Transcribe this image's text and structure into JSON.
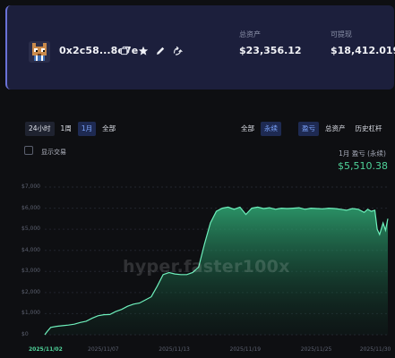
{
  "account": {
    "address": "0x2c58...8e7e",
    "icons": [
      "copy-icon",
      "star-icon",
      "pencil-icon",
      "share-icon"
    ],
    "total_assets_label": "总资产",
    "total_assets_value": "$23,356.12",
    "withdrawable_label": "可提现",
    "withdrawable_value": "$18,412.019"
  },
  "range_tabs": [
    "24小时",
    "1周",
    "1月",
    "全部"
  ],
  "range_selected": "1月",
  "scope_tabs": [
    "全部",
    "永续"
  ],
  "scope_selected": "永续",
  "metric_tabs": [
    "盈亏",
    "总资产",
    "历史杠杆"
  ],
  "metric_selected": "盈亏",
  "show_trades_label": "显示交易",
  "pnl_label": "1月 盈亏 (永续)",
  "pnl_value": "$5,510.38",
  "watermark": "hyper.faster100x",
  "colors": {
    "accent_green": "#4fd39a",
    "card_bg": "#1c1f3c",
    "active_tab": "#7da6ff"
  },
  "chart_data": {
    "type": "area",
    "title": "",
    "xlabel": "",
    "ylabel": "",
    "y_ticks": [
      "$7,000",
      "$6,000",
      "$5,000",
      "$4,000",
      "$3,000",
      "$2,000",
      "$1,000",
      "$0"
    ],
    "ylim": [
      0,
      7000
    ],
    "x_ticks": [
      "2025/11/02",
      "2025/11/07",
      "2025/11/13",
      "2025/11/19",
      "2025/11/25",
      "2025/11/30"
    ],
    "x_tick_pos": [
      0.0,
      5.0,
      11.0,
      17.0,
      23.0,
      28.0
    ],
    "x_highlight": "2025/11/02",
    "grid": true,
    "series": [
      {
        "x": [
          0,
          0.2,
          0.5,
          1,
          1.5,
          2,
          2.5,
          3,
          3.5,
          4,
          4.5,
          5,
          5.5,
          6,
          6.5,
          7,
          7.5,
          8,
          8.5,
          9,
          9.5,
          10,
          10.5,
          11,
          11.5,
          12,
          12.5,
          13,
          13.5,
          14,
          14.5,
          15,
          15.5,
          16,
          16.5,
          17,
          17.5,
          18,
          18.5,
          19,
          19.5,
          20,
          20.5,
          21,
          21.5,
          22,
          22.5,
          23,
          23.5,
          24,
          24.5,
          25,
          25.5,
          26,
          26.5,
          27,
          27.3,
          27.6,
          27.9,
          28.1,
          28.3,
          28.6,
          28.8,
          29
        ],
        "values": [
          0,
          150,
          350,
          400,
          430,
          460,
          500,
          580,
          640,
          780,
          900,
          950,
          960,
          1100,
          1200,
          1350,
          1450,
          1500,
          1650,
          1800,
          2300,
          2850,
          2950,
          2880,
          2850,
          2850,
          2950,
          3200,
          4300,
          5300,
          5850,
          6000,
          6050,
          5950,
          6050,
          5700,
          6000,
          6050,
          5980,
          6020,
          5950,
          6000,
          5980,
          6000,
          6020,
          5950,
          6000,
          5980,
          5970,
          6000,
          5980,
          5950,
          5900,
          5980,
          5950,
          5800,
          5950,
          5850,
          5900,
          5000,
          4750,
          5300,
          4950,
          5500
        ]
      }
    ]
  }
}
